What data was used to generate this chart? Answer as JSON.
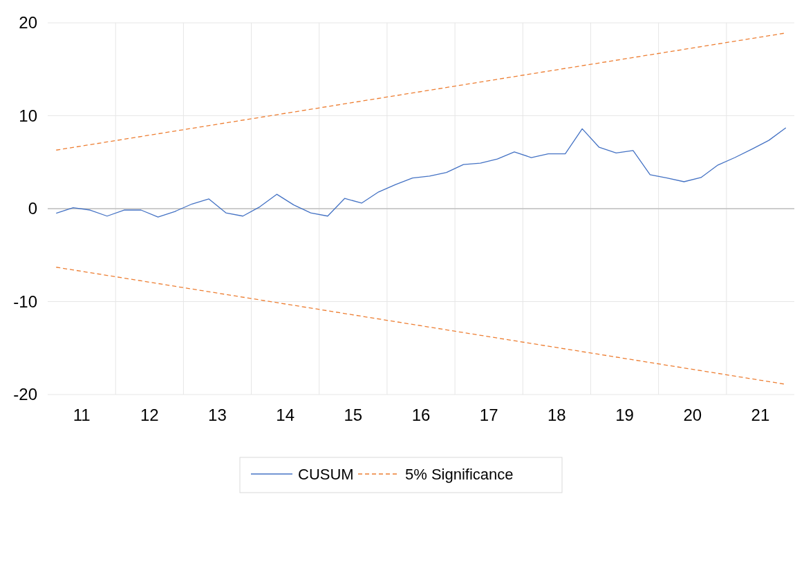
{
  "chart_data": {
    "type": "line",
    "xlim": [
      10.5,
      21.5
    ],
    "xticks": [
      11,
      {
        "value": 11.5,
        "label": null
      },
      12,
      {
        "value": 12.5,
        "label": null
      },
      13,
      {
        "value": 13.5,
        "label": null
      },
      14,
      {
        "value": 14.5,
        "label": null
      },
      15,
      {
        "value": 15.5,
        "label": null
      },
      16,
      {
        "value": 16.5,
        "label": null
      },
      17,
      {
        "value": 17.5,
        "label": null
      },
      18,
      {
        "value": 18.5,
        "label": null
      },
      19,
      {
        "value": 19.5,
        "label": null
      },
      20,
      {
        "value": 20.5,
        "label": null
      },
      21
    ],
    "ylim": [
      -20,
      20
    ],
    "yticks": [
      -20,
      -10,
      0,
      10,
      20
    ],
    "grid": true,
    "legend": "bottom",
    "marker": "none",
    "series": [
      {
        "name": "CUSUM",
        "color": "#4472c4",
        "line_style": "solid",
        "x": [
          10.625,
          10.875,
          11.125,
          11.375,
          11.625,
          11.875,
          12.125,
          12.375,
          12.625,
          12.875,
          13.125,
          13.375,
          13.625,
          13.875,
          14.125,
          14.375,
          14.625,
          14.875,
          15.125,
          15.375,
          15.625,
          15.875,
          16.125,
          16.375,
          16.625,
          16.875,
          17.125,
          17.375,
          17.625,
          17.875,
          18.125,
          18.375,
          18.625,
          18.875,
          19.125,
          19.375,
          19.625,
          19.875,
          20.125,
          20.375,
          20.625,
          20.875,
          21.125,
          21.375
        ],
        "values": [
          -0.5,
          0.1,
          -0.15,
          -0.8,
          -0.15,
          -0.15,
          -0.9,
          -0.3,
          0.5,
          1.05,
          -0.45,
          -0.8,
          0.2,
          1.55,
          0.4,
          -0.45,
          -0.8,
          1.1,
          0.6,
          1.8,
          2.6,
          3.3,
          3.5,
          3.9,
          4.75,
          4.9,
          5.35,
          6.1,
          5.5,
          5.9,
          5.9,
          8.6,
          6.6,
          6.0,
          6.25,
          3.65,
          3.3,
          2.9,
          3.35,
          4.7,
          5.5,
          6.4,
          7.35,
          8.7
        ]
      },
      {
        "name": "5% Significance",
        "color": "#ed7d31",
        "line_style": "dashed",
        "x": [
          10.625,
          21.375
        ],
        "values": [
          6.3,
          18.9
        ]
      },
      {
        "color": "#ed7d31",
        "line_style": "dashed",
        "x": [
          10.625,
          21.375
        ],
        "values": [
          -6.3,
          -18.9
        ]
      }
    ]
  }
}
